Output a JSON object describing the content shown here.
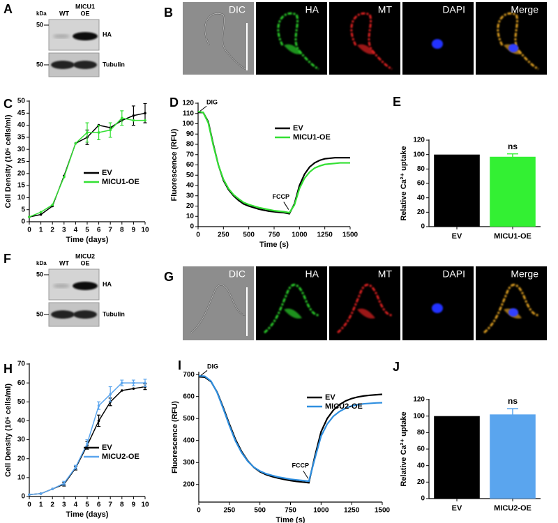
{
  "blots": [
    {
      "panel": "A",
      "unit": "kDa",
      "lanes": [
        [
          "WT"
        ],
        [
          "MICU1",
          "OE"
        ]
      ],
      "rows": [
        {
          "marker": 50,
          "label": "HA"
        },
        {
          "marker": 50,
          "label": "Tubulin"
        }
      ]
    },
    {
      "panel": "F",
      "unit": "kDa",
      "lanes": [
        [
          "WT"
        ],
        [
          "MICU2",
          "OE"
        ]
      ],
      "rows": [
        {
          "marker": 50,
          "label": "HA"
        },
        {
          "marker": 50,
          "label": "Tubulin"
        }
      ]
    }
  ],
  "micrographs": [
    {
      "panel": "B",
      "channels": [
        "DIC",
        "HA",
        "MT",
        "DAPI",
        "Merge"
      ]
    },
    {
      "panel": "G",
      "channels": [
        "DIC",
        "HA",
        "MT",
        "DAPI",
        "Merge"
      ]
    }
  ],
  "chart_data": [
    {
      "type": "line",
      "panel": "C",
      "x_label": "Time (days)",
      "y_label": "Cell Density (10⁶ cells/ml)",
      "x": [
        0,
        1,
        2,
        3,
        4,
        5,
        6,
        7,
        8,
        9,
        10
      ],
      "xlim": [
        0,
        10
      ],
      "xticks": [
        0,
        1,
        2,
        3,
        4,
        5,
        6,
        7,
        8,
        9,
        10
      ],
      "ylim": [
        0,
        50
      ],
      "yticks": [
        0,
        5,
        10,
        15,
        20,
        25,
        30,
        35,
        40,
        45,
        50
      ],
      "markers": true,
      "legend": "lower right",
      "series": [
        {
          "name": "EV",
          "color": "#000000",
          "values": [
            2,
            3,
            6.5,
            19,
            32.5,
            35,
            40,
            39,
            42,
            44,
            45
          ],
          "errors": [
            null,
            null,
            null,
            null,
            null,
            3,
            null,
            null,
            null,
            4,
            4
          ]
        },
        {
          "name": "MICU1-OE",
          "color": "#33e033",
          "values": [
            2,
            4,
            7,
            18.5,
            32.5,
            37,
            37,
            38,
            43,
            42,
            42
          ],
          "errors": [
            null,
            null,
            null,
            null,
            null,
            4,
            3,
            3,
            3,
            null,
            null
          ]
        }
      ]
    },
    {
      "type": "line",
      "panel": "D",
      "x_label": "Time (s)",
      "y_label": "Fluorescence (RFU)",
      "annotations": [
        "DIG",
        "FCCP"
      ],
      "x": [
        0,
        50,
        100,
        150,
        200,
        250,
        300,
        350,
        400,
        450,
        500,
        550,
        600,
        650,
        700,
        750,
        800,
        850,
        900,
        950,
        1000,
        1050,
        1100,
        1150,
        1200,
        1250,
        1300,
        1350,
        1400,
        1450,
        1500
      ],
      "xlim": [
        0,
        1500
      ],
      "xticks": [
        0,
        250,
        500,
        750,
        1000,
        1250,
        1500
      ],
      "ylim": [
        0,
        120
      ],
      "yticks": [
        0,
        10,
        20,
        30,
        40,
        50,
        60,
        70,
        80,
        90,
        100,
        110,
        120
      ],
      "legend": "upper right",
      "series": [
        {
          "name": "EV",
          "color": "#000000",
          "values": [
            111,
            111,
            102,
            80,
            60,
            45,
            36,
            30,
            25.5,
            22,
            20,
            18.5,
            17,
            16,
            15,
            14.5,
            14,
            13.5,
            12.5,
            22,
            40,
            51,
            58,
            62,
            64.5,
            66,
            66.5,
            67,
            67,
            67,
            67
          ]
        },
        {
          "name": "MICU1-OE",
          "color": "#33e033",
          "values": [
            112,
            111,
            101,
            79,
            60,
            46,
            37,
            31,
            27,
            23.5,
            21.5,
            20,
            18.5,
            17.5,
            16.5,
            15.5,
            15,
            14.5,
            13.5,
            21,
            37,
            47,
            53,
            57,
            59,
            60.5,
            61,
            61.5,
            62,
            62,
            62
          ]
        }
      ]
    },
    {
      "type": "bar",
      "panel": "E",
      "y_label": "Relative Ca²⁺ uptake",
      "annotation": "ns",
      "categories": [
        "EV",
        "MICU1-OE"
      ],
      "values": [
        100,
        97
      ],
      "errors": [
        null,
        4
      ],
      "colors": [
        "#000000",
        "#33f033"
      ],
      "ylim": [
        0,
        120
      ],
      "yticks": [
        0,
        20,
        40,
        60,
        80,
        100,
        120
      ]
    },
    {
      "type": "line",
      "panel": "H",
      "x_label": "Time (days)",
      "y_label": "Cell Density (10⁶ cells/ml)",
      "x": [
        0,
        1,
        2,
        3,
        4,
        5,
        6,
        7,
        8,
        9,
        10
      ],
      "xlim": [
        0,
        10
      ],
      "xticks": [
        0,
        1,
        2,
        3,
        4,
        5,
        6,
        7,
        8,
        9,
        10
      ],
      "ylim": [
        0,
        70
      ],
      "yticks": [
        0,
        10,
        20,
        30,
        40,
        50,
        60,
        70
      ],
      "markers": true,
      "legend": "lower right",
      "series": [
        {
          "name": "EV",
          "color": "#000000",
          "values": [
            1,
            1.5,
            4,
            6.5,
            15,
            27,
            40,
            50,
            56,
            57,
            58
          ],
          "errors": [
            null,
            null,
            null,
            1,
            1,
            2,
            3,
            2,
            null,
            null,
            1.5
          ]
        },
        {
          "name": "MICU2-OE",
          "color": "#5aa5ee",
          "values": [
            1,
            1.5,
            4,
            7,
            15.5,
            28,
            48,
            54,
            60,
            60,
            60
          ],
          "errors": [
            null,
            null,
            null,
            1,
            1,
            2,
            2,
            4,
            1.5,
            1.5,
            2
          ]
        }
      ]
    },
    {
      "type": "line",
      "panel": "I",
      "x_label": "Time (s)",
      "y_label": "Fluorescence (RFU)",
      "annotations": [
        "DIG",
        "FCCP"
      ],
      "x": [
        0,
        50,
        100,
        150,
        200,
        250,
        300,
        350,
        400,
        450,
        500,
        550,
        600,
        650,
        700,
        750,
        800,
        850,
        900,
        950,
        1000,
        1050,
        1100,
        1150,
        1200,
        1250,
        1300,
        1350,
        1400,
        1450,
        1500
      ],
      "xlim": [
        0,
        1500
      ],
      "xticks": [
        0,
        250,
        500,
        750,
        1000,
        1250,
        1500
      ],
      "ylim": [
        120,
        710
      ],
      "yticks": [
        200,
        300,
        400,
        500,
        600,
        700
      ],
      "legend": "upper right",
      "series": [
        {
          "name": "EV",
          "color": "#000000",
          "values": [
            690,
            688,
            668,
            620,
            550,
            475,
            405,
            350,
            308,
            278,
            258,
            245,
            236,
            229,
            223,
            218,
            214,
            211,
            208,
            330,
            440,
            500,
            538,
            563,
            580,
            591,
            598,
            603,
            606,
            608,
            610
          ]
        },
        {
          "name": "MICU2-OE",
          "color": "#2f8fe0",
          "values": [
            695,
            692,
            670,
            618,
            545,
            468,
            398,
            345,
            306,
            279,
            261,
            249,
            241,
            234,
            229,
            224,
            221,
            218,
            215,
            320,
            420,
            475,
            510,
            532,
            547,
            557,
            563,
            567,
            569,
            571,
            572
          ]
        }
      ]
    },
    {
      "type": "bar",
      "panel": "J",
      "y_label": "Relative Ca²⁺ uptake",
      "annotation": "ns",
      "categories": [
        "EV",
        "MICU2-OE"
      ],
      "values": [
        100,
        102
      ],
      "errors": [
        null,
        7
      ],
      "colors": [
        "#000000",
        "#5aa5ee"
      ],
      "ylim": [
        0,
        120
      ],
      "yticks": [
        0,
        20,
        40,
        60,
        80,
        100,
        120
      ]
    }
  ]
}
